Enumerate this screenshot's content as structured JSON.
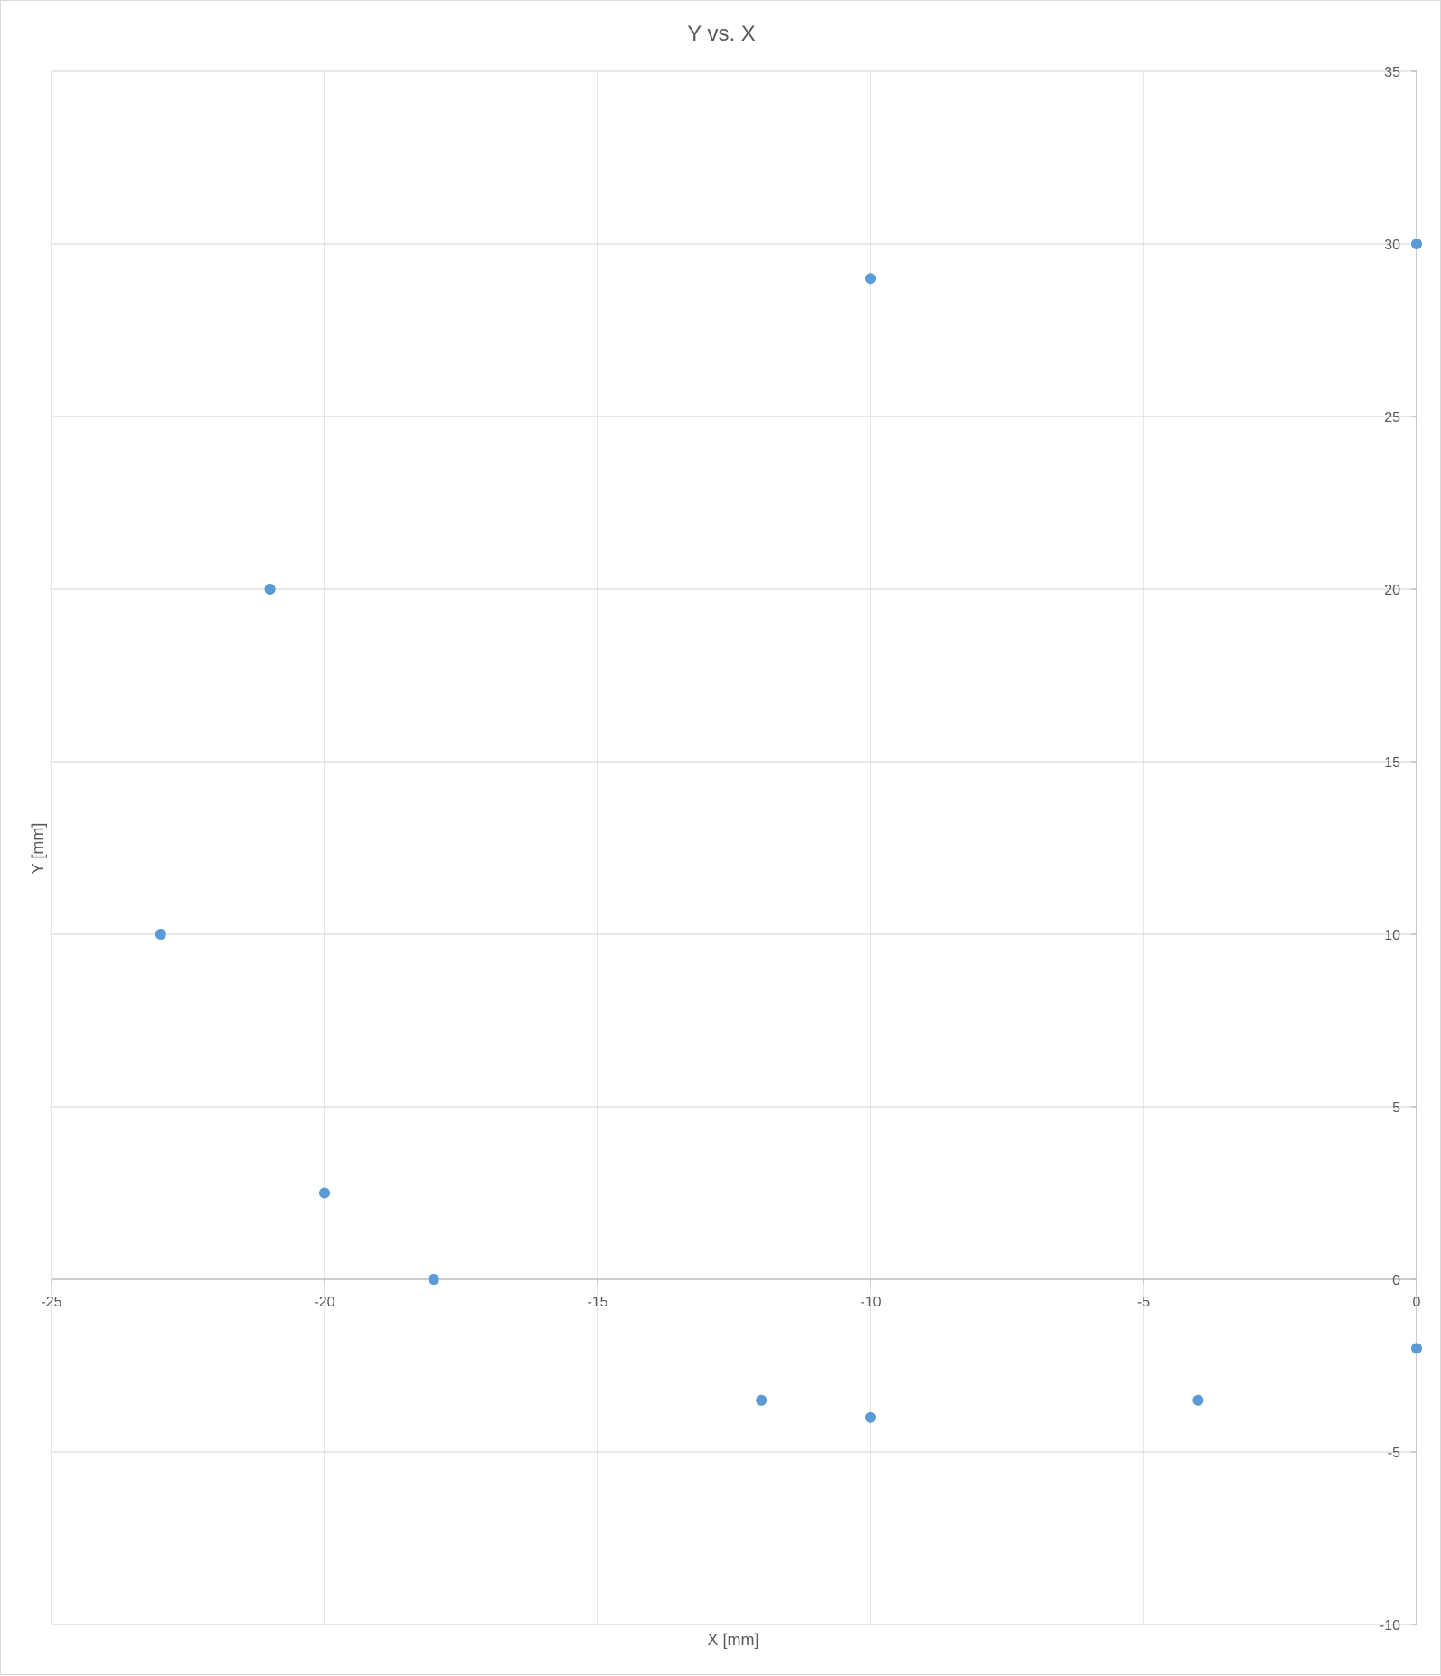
{
  "chart_data": {
    "type": "scatter",
    "title": "Y vs. X",
    "xlabel": "X [mm]",
    "ylabel": "Y [mm]",
    "xlim": [
      -25,
      0
    ],
    "ylim": [
      -10,
      35
    ],
    "x_ticks": [
      -25,
      -20,
      -15,
      -10,
      -5,
      0
    ],
    "y_ticks": [
      -10,
      -5,
      0,
      5,
      10,
      15,
      20,
      25,
      30,
      35
    ],
    "x_tick_labels": [
      "-25",
      "-20",
      "-15",
      "-10",
      "-5",
      "0"
    ],
    "y_tick_labels": [
      "-10",
      "-5",
      "0",
      "5",
      "10",
      "15",
      "20",
      "25",
      "30",
      "35"
    ],
    "grid": true,
    "legend": false,
    "marker_color": "#5b9bd5",
    "series": [
      {
        "points": [
          {
            "x": -23,
            "y": 10
          },
          {
            "x": -21,
            "y": 20
          },
          {
            "x": -20,
            "y": 2.5
          },
          {
            "x": -18,
            "y": 0
          },
          {
            "x": -12,
            "y": -3.5
          },
          {
            "x": -10,
            "y": -4
          },
          {
            "x": -10,
            "y": 29
          },
          {
            "x": -4,
            "y": -3.5
          },
          {
            "x": 0,
            "y": -2
          },
          {
            "x": 0,
            "y": 30
          }
        ]
      }
    ]
  }
}
